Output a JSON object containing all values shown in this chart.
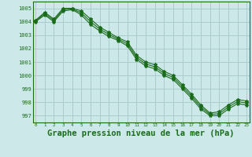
{
  "background_color": "#cce8e8",
  "grid_color": "#aacccc",
  "line_color": "#1a6b1a",
  "marker_color": "#1a6b1a",
  "xlabel": "Graphe pression niveau de la mer (hPa)",
  "xlabel_fontsize": 7.5,
  "ylim": [
    996.5,
    1005.5
  ],
  "xlim": [
    -0.3,
    23.3
  ],
  "yticks": [
    997,
    998,
    999,
    1000,
    1001,
    1002,
    1003,
    1004,
    1005
  ],
  "xticks": [
    0,
    1,
    2,
    3,
    4,
    5,
    6,
    7,
    8,
    9,
    10,
    11,
    12,
    13,
    14,
    15,
    16,
    17,
    18,
    19,
    20,
    21,
    22,
    23
  ],
  "series1": {
    "x": [
      0,
      1,
      2,
      3,
      4,
      5,
      6,
      7,
      8,
      9,
      10,
      11,
      12,
      13,
      14,
      15,
      16,
      17,
      18,
      19,
      20,
      21,
      22,
      23
    ],
    "y": [
      1004.1,
      1004.7,
      1004.2,
      1005.0,
      1005.0,
      1004.8,
      1004.2,
      1003.6,
      1003.2,
      1002.8,
      1002.5,
      1001.5,
      1001.0,
      1000.8,
      1000.3,
      1000.0,
      999.3,
      998.6,
      997.8,
      997.2,
      997.3,
      997.8,
      998.2,
      998.1
    ]
  },
  "series2": {
    "x": [
      0,
      1,
      2,
      3,
      4,
      5,
      6,
      7,
      8,
      9,
      10,
      11,
      12,
      13,
      14,
      15,
      16,
      17,
      18,
      19,
      20,
      21,
      22,
      23
    ],
    "y": [
      1004.0,
      1004.5,
      1004.0,
      1004.8,
      1004.9,
      1004.5,
      1003.8,
      1003.3,
      1002.9,
      1002.6,
      1002.2,
      1001.2,
      1000.7,
      1000.5,
      1000.0,
      999.7,
      999.0,
      998.3,
      997.5,
      997.0,
      997.0,
      997.5,
      997.9,
      997.8
    ]
  },
  "series3": {
    "x": [
      0,
      1,
      2,
      3,
      4,
      5,
      6,
      7,
      8,
      9,
      10,
      11,
      12,
      13,
      14,
      15,
      16,
      17,
      18,
      19,
      20,
      21,
      22,
      23
    ],
    "y": [
      1004.05,
      1004.6,
      1004.1,
      1004.9,
      1004.95,
      1004.65,
      1004.0,
      1003.45,
      1003.05,
      1002.7,
      1002.35,
      1001.35,
      1000.85,
      1000.65,
      1000.15,
      999.85,
      999.15,
      998.45,
      997.65,
      997.1,
      997.15,
      997.65,
      998.05,
      997.95
    ]
  }
}
